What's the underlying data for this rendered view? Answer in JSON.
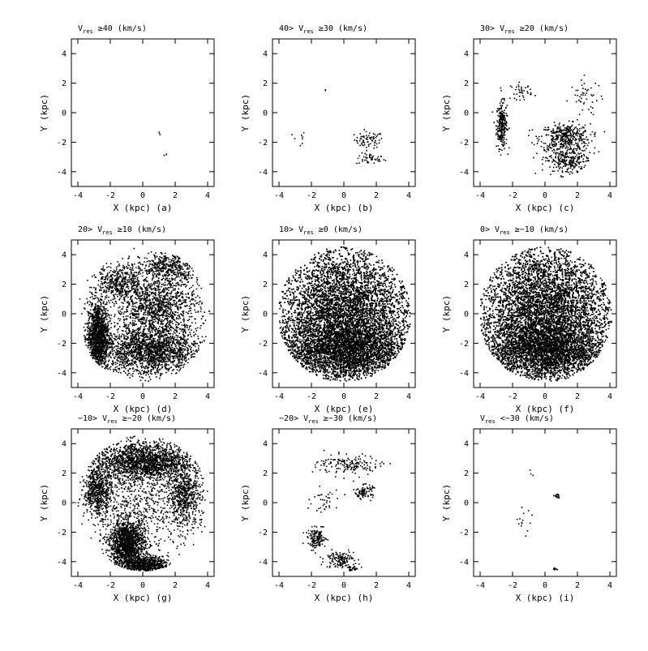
{
  "chart_data": [
    {
      "type": "scatter",
      "panel": "a",
      "title_parts": {
        "pre": "",
        "sym": "V",
        "sub": "res",
        "post": " ≥40 (km/s)"
      },
      "xlabel": "X (kpc) (a)",
      "ylabel": "Y (kpc)",
      "xlim": [
        -4.4,
        4.4
      ],
      "ylim": [
        -5.0,
        5.0
      ],
      "xticks": [
        -4,
        -2,
        0,
        2,
        4
      ],
      "yticks": [
        -4,
        -2,
        0,
        2,
        4
      ],
      "density_desc": "nearly empty: two tiny specks near (1.0,-1.5) and (1.4,-2.8)",
      "regions": [
        {
          "cx": 1.0,
          "cy": -1.4,
          "rx": 0.12,
          "ry": 0.15,
          "n": 3
        },
        {
          "cx": 1.4,
          "cy": -2.8,
          "rx": 0.1,
          "ry": 0.15,
          "n": 3
        }
      ]
    },
    {
      "type": "scatter",
      "panel": "b",
      "title_parts": {
        "pre": "40> ",
        "sym": "V",
        "sub": "res",
        "post": " ≥30 (km/s)"
      },
      "xlabel": "X (kpc) (b)",
      "ylabel": "Y (kpc)",
      "xlim": [
        -4.4,
        4.4
      ],
      "ylim": [
        -5.0,
        5.0
      ],
      "xticks": [
        -4,
        -2,
        0,
        2,
        4
      ],
      "yticks": [
        -4,
        -2,
        0,
        2,
        4
      ],
      "density_desc": "sparse points clustered around (1.5,-2) to (2,-3.5)",
      "regions": [
        {
          "cx": 1.5,
          "cy": -1.8,
          "rx": 0.8,
          "ry": 0.5,
          "n": 70
        },
        {
          "cx": 1.6,
          "cy": -3.1,
          "rx": 0.8,
          "ry": 0.35,
          "n": 45
        },
        {
          "cx": -2.8,
          "cy": -1.8,
          "rx": 0.35,
          "ry": 0.6,
          "n": 8
        },
        {
          "cx": -1.2,
          "cy": 1.6,
          "rx": 0.1,
          "ry": 0.1,
          "n": 2
        }
      ]
    },
    {
      "type": "scatter",
      "panel": "c",
      "title_parts": {
        "pre": "30> ",
        "sym": "V",
        "sub": "res",
        "post": " ≥20 (km/s)"
      },
      "xlabel": "X (kpc) (c)",
      "ylabel": "Y (kpc)",
      "xlim": [
        -4.4,
        4.4
      ],
      "ylim": [
        -5.0,
        5.0
      ],
      "xticks": [
        -4,
        -2,
        0,
        2,
        4
      ],
      "yticks": [
        -4,
        -2,
        0,
        2,
        4
      ],
      "density_desc": "arc on left from (-2.5,0) to (-2.7,-2.5); central clumps around (1,-2) and (1.5,-3)",
      "regions": [
        {
          "cx": -2.7,
          "cy": -0.8,
          "rx": 0.3,
          "ry": 1.4,
          "n": 260
        },
        {
          "cx": 1.2,
          "cy": -1.6,
          "rx": 1.4,
          "ry": 0.8,
          "n": 380
        },
        {
          "cx": 1.4,
          "cy": -3.2,
          "rx": 1.3,
          "ry": 0.9,
          "n": 300
        },
        {
          "cx": -1.5,
          "cy": 1.5,
          "rx": 0.6,
          "ry": 0.5,
          "n": 40
        },
        {
          "cx": 2.5,
          "cy": 1.0,
          "rx": 0.9,
          "ry": 1.2,
          "n": 50
        }
      ]
    },
    {
      "type": "scatter",
      "panel": "d",
      "title_parts": {
        "pre": "20> ",
        "sym": "V",
        "sub": "res",
        "post": " ≥10 (km/s)"
      },
      "xlabel": "X (kpc) (d)",
      "ylabel": "Y (kpc)",
      "xlim": [
        -4.4,
        4.4
      ],
      "ylim": [
        -5.0,
        5.0
      ],
      "xticks": [
        -4,
        -2,
        0,
        2,
        4
      ],
      "yticks": [
        -4,
        -2,
        0,
        2,
        4
      ],
      "density_desc": "widespread spiral structure, dense left arc and southern region",
      "regions": [
        {
          "cx": -2.8,
          "cy": -1.5,
          "rx": 0.6,
          "ry": 2.2,
          "n": 1400
        },
        {
          "cx": 0.5,
          "cy": -2.5,
          "rx": 2.8,
          "ry": 1.5,
          "n": 1900
        },
        {
          "cx": 0.8,
          "cy": 0.5,
          "rx": 2.4,
          "ry": 2.0,
          "n": 1300
        },
        {
          "cx": 1.5,
          "cy": 3.2,
          "rx": 1.8,
          "ry": 1.0,
          "n": 500
        },
        {
          "cx": -1.5,
          "cy": 2.2,
          "rx": 1.2,
          "ry": 1.0,
          "n": 400
        }
      ]
    },
    {
      "type": "scatter",
      "panel": "e",
      "title_parts": {
        "pre": "10> ",
        "sym": "V",
        "sub": "res",
        "post": " ≥0 (km/s)"
      },
      "xlabel": "X (kpc) (e)",
      "ylabel": "Y (kpc)",
      "xlim": [
        -4.4,
        4.4
      ],
      "ylim": [
        -5.0,
        5.0
      ],
      "xticks": [
        -4,
        -2,
        0,
        2,
        4
      ],
      "yticks": [
        -4,
        -2,
        0,
        2,
        4
      ],
      "density_desc": "nearly filled disk",
      "regions": [
        {
          "cx": 0.0,
          "cy": 0.0,
          "rx": 3.8,
          "ry": 4.3,
          "n": 9000
        },
        {
          "cx": 0.0,
          "cy": -2.5,
          "rx": 3.8,
          "ry": 1.8,
          "n": 3000
        }
      ]
    },
    {
      "type": "scatter",
      "panel": "f",
      "title_parts": {
        "pre": "0> ",
        "sym": "V",
        "sub": "res",
        "post": " ≥−10 (km/s)"
      },
      "xlabel": "X (kpc) (f)",
      "ylabel": "Y (kpc)",
      "xlim": [
        -4.4,
        4.4
      ],
      "ylim": [
        -5.0,
        5.0
      ],
      "xticks": [
        -4,
        -2,
        0,
        2,
        4
      ],
      "yticks": [
        -4,
        -2,
        0,
        2,
        4
      ],
      "density_desc": "nearly filled disk",
      "regions": [
        {
          "cx": 0.0,
          "cy": 0.2,
          "rx": 3.8,
          "ry": 4.3,
          "n": 9000
        },
        {
          "cx": 0.0,
          "cy": -2.5,
          "rx": 3.6,
          "ry": 1.8,
          "n": 3000
        }
      ]
    },
    {
      "type": "scatter",
      "panel": "g",
      "title_parts": {
        "pre": "−10> ",
        "sym": "V",
        "sub": "res",
        "post": " ≥−20 (km/s)"
      },
      "xlabel": "X (kpc) (g)",
      "ylabel": "Y (kpc)",
      "xlim": [
        -4.4,
        4.4
      ],
      "ylim": [
        -5.0,
        5.0
      ],
      "xticks": [
        -4,
        -2,
        0,
        2,
        4
      ],
      "yticks": [
        -4,
        -2,
        0,
        2,
        4
      ],
      "density_desc": "ring of clumps in north, dense diagonal arc from (-2,-1) to (1,-4.5)",
      "regions": [
        {
          "cx": -1.0,
          "cy": -2.8,
          "rx": 1.0,
          "ry": 1.5,
          "n": 1500
        },
        {
          "cx": 0.2,
          "cy": -4.2,
          "rx": 1.2,
          "ry": 0.5,
          "n": 700
        },
        {
          "cx": 0.0,
          "cy": 2.8,
          "rx": 2.8,
          "ry": 1.2,
          "n": 1800
        },
        {
          "cx": -2.8,
          "cy": 0.8,
          "rx": 0.8,
          "ry": 1.5,
          "n": 600
        },
        {
          "cx": 2.5,
          "cy": 0.5,
          "rx": 1.0,
          "ry": 1.8,
          "n": 600
        },
        {
          "cx": 0.0,
          "cy": 0.0,
          "rx": 3.0,
          "ry": 3.5,
          "n": 700
        }
      ]
    },
    {
      "type": "scatter",
      "panel": "h",
      "title_parts": {
        "pre": "−20> ",
        "sym": "V",
        "sub": "res",
        "post": " ≥−30 (km/s)"
      },
      "xlabel": "X (kpc) (h)",
      "ylabel": "Y (kpc)",
      "xlim": [
        -4.4,
        4.4
      ],
      "ylim": [
        -5.0,
        5.0
      ],
      "xticks": [
        -4,
        -2,
        0,
        2,
        4
      ],
      "yticks": [
        -4,
        -2,
        0,
        2,
        4
      ],
      "density_desc": "scattered clumps in north; diagonal chain from (-2,-1.5) to (0.5,-4.5)",
      "regions": [
        {
          "cx": -1.7,
          "cy": -2.4,
          "rx": 0.5,
          "ry": 0.6,
          "n": 140
        },
        {
          "cx": -0.3,
          "cy": -3.8,
          "rx": 0.8,
          "ry": 0.5,
          "n": 140
        },
        {
          "cx": 0.5,
          "cy": -4.5,
          "rx": 0.3,
          "ry": 0.25,
          "n": 60
        },
        {
          "cx": 0.3,
          "cy": 2.6,
          "rx": 1.8,
          "ry": 0.6,
          "n": 160
        },
        {
          "cx": 1.2,
          "cy": 0.8,
          "rx": 0.5,
          "ry": 0.4,
          "n": 90
        },
        {
          "cx": -1.2,
          "cy": 0.0,
          "rx": 0.8,
          "ry": 1.2,
          "n": 40
        }
      ]
    },
    {
      "type": "scatter",
      "panel": "i",
      "title_parts": {
        "pre": "",
        "sym": "V",
        "sub": "res",
        "post": " <−30 (km/s)"
      },
      "xlabel": "X (kpc) (i)",
      "ylabel": "Y (kpc)",
      "xlim": [
        -4.4,
        4.4
      ],
      "ylim": [
        -5.0,
        5.0
      ],
      "xticks": [
        -4,
        -2,
        0,
        2,
        4
      ],
      "yticks": [
        -4,
        -2,
        0,
        2,
        4
      ],
      "density_desc": "very sparse: small clumps at (0.7,0.5) and (0.6,-4.5)",
      "regions": [
        {
          "cx": 0.7,
          "cy": 0.5,
          "rx": 0.15,
          "ry": 0.2,
          "n": 15
        },
        {
          "cx": 0.6,
          "cy": -4.5,
          "rx": 0.2,
          "ry": 0.12,
          "n": 15
        },
        {
          "cx": -1.5,
          "cy": -1.2,
          "rx": 0.6,
          "ry": 0.8,
          "n": 14
        },
        {
          "cx": -1.0,
          "cy": 2.0,
          "rx": 0.3,
          "ry": 0.2,
          "n": 3
        }
      ]
    }
  ]
}
